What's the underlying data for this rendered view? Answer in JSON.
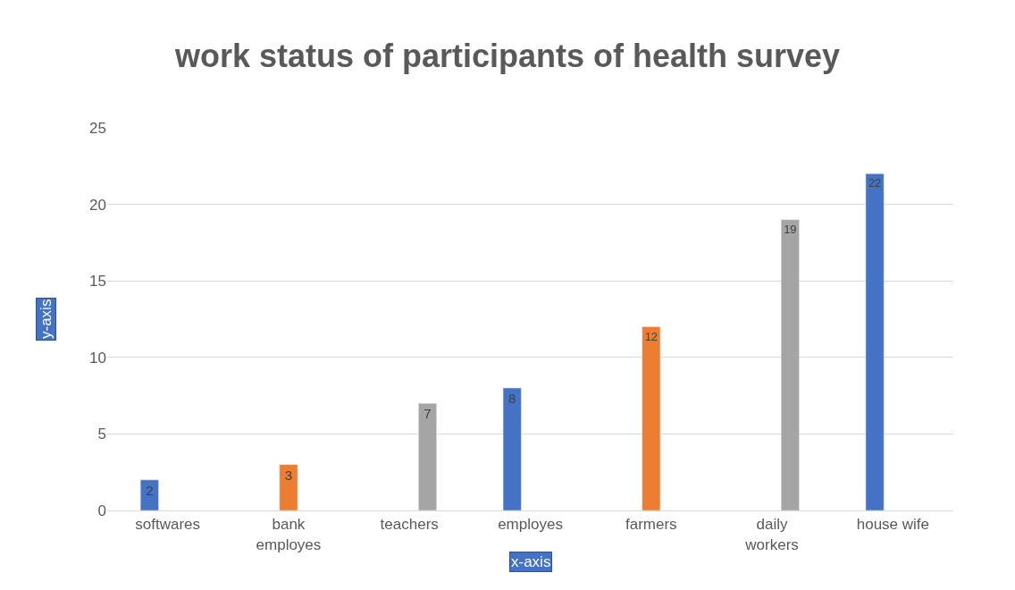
{
  "chart_data": {
    "type": "bar",
    "title": "work status of participants of health survey",
    "xlabel": "x-axis",
    "ylabel": "y-axis",
    "categories": [
      "softwares",
      "bank employes",
      "teachers",
      "employes",
      "farmers",
      "daily workers",
      "house wife"
    ],
    "series": [
      {
        "color": "#4472c4",
        "values": [
          2,
          null,
          null,
          8,
          null,
          null,
          22
        ]
      },
      {
        "color": "#ed7d31",
        "values": [
          null,
          3,
          null,
          null,
          12,
          null,
          null
        ]
      },
      {
        "color": "#a5a5a5",
        "values": [
          null,
          null,
          7,
          null,
          null,
          19,
          null
        ]
      }
    ],
    "ylim": [
      0,
      25
    ],
    "yticks": [
      0,
      5,
      10,
      15,
      20,
      25
    ],
    "grid": "y",
    "data_labels": true,
    "legend": false
  }
}
